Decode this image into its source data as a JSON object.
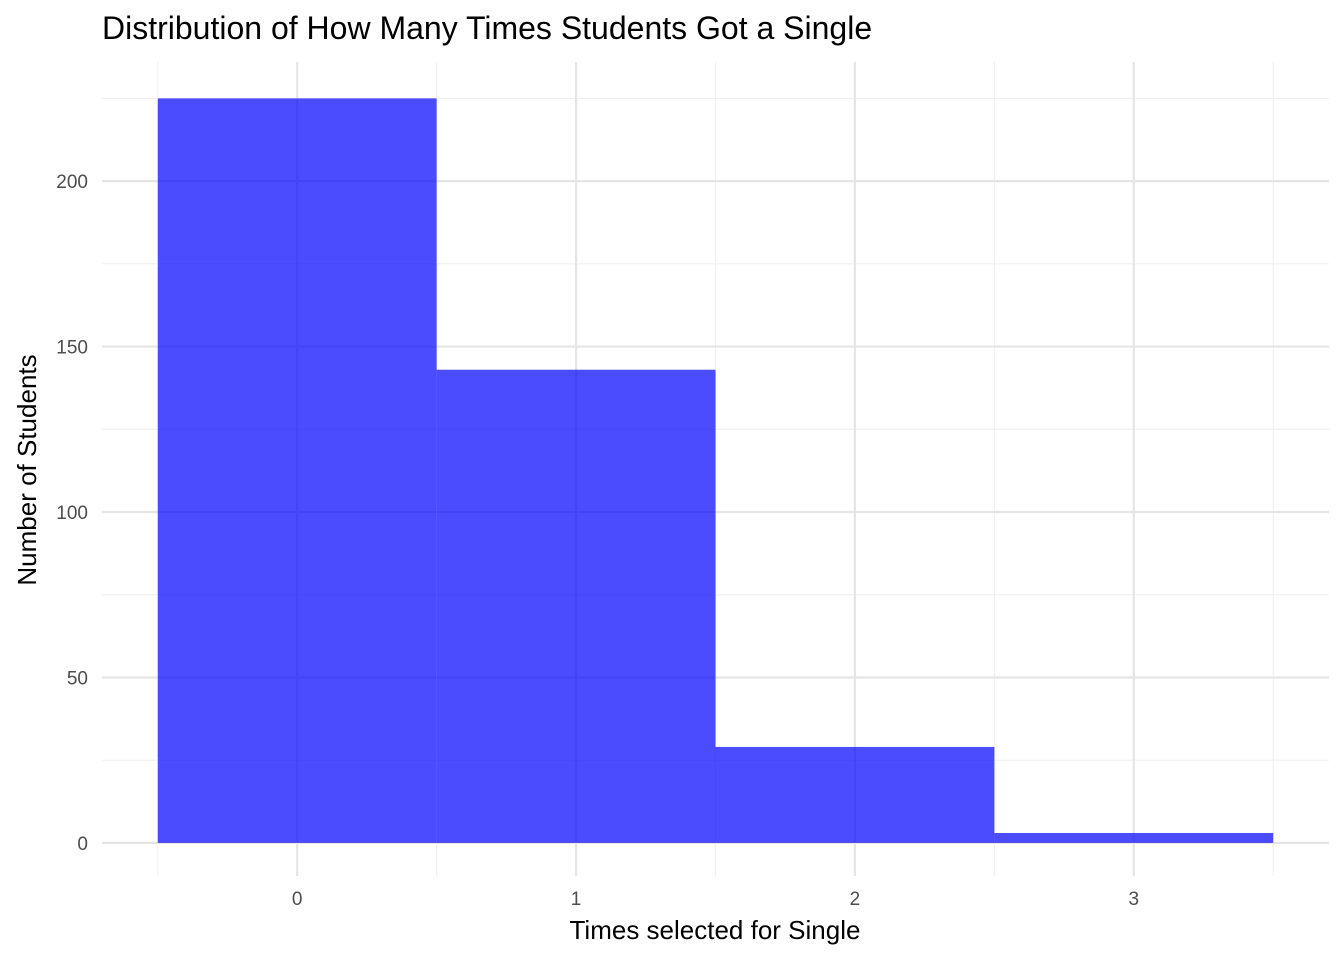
{
  "chart_data": {
    "type": "bar",
    "title": "Distribution of How Many Times Students Got a Single",
    "xlabel": "Times selected for Single",
    "ylabel": "Number of Students",
    "categories": [
      "0",
      "1",
      "2",
      "3"
    ],
    "values": [
      225,
      143,
      29,
      3
    ],
    "bar_color": "#0000ff",
    "bar_opacity": 0.7,
    "x_ticks": [
      0,
      1,
      2,
      3
    ],
    "y_ticks": [
      0,
      50,
      100,
      150,
      200
    ],
    "xlim": [
      -0.7,
      3.7
    ],
    "ylim": [
      -10,
      236
    ],
    "grid": true
  }
}
